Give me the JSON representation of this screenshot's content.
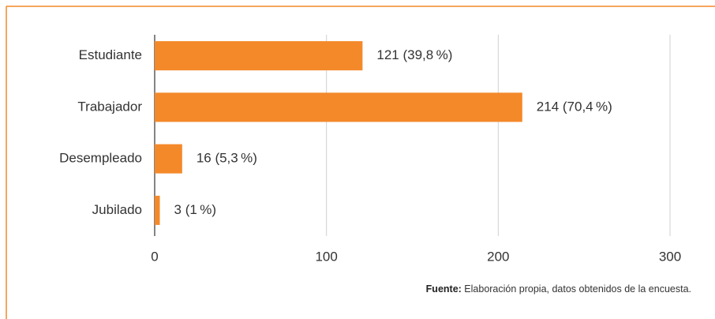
{
  "chart_data": {
    "type": "bar",
    "orientation": "horizontal",
    "categories": [
      "Estudiante",
      "Trabajador",
      "Desempleado",
      "Jubilado"
    ],
    "values": [
      121,
      214,
      16,
      3
    ],
    "value_labels": [
      "121 (39,8 %)",
      "214 (70,4 %)",
      "16 (5,3 %)",
      "3 (1 %)"
    ],
    "color": "#f4892a",
    "xlim": [
      0,
      300
    ],
    "xticks": [
      0,
      100,
      200,
      300
    ],
    "grid": true,
    "source": {
      "label": "Fuente:",
      "text": "Elaboración propia, datos obtenidos de la encuesta."
    }
  }
}
